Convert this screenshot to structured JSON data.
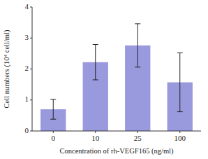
{
  "chart_data": {
    "type": "bar",
    "categories": [
      "0",
      "10",
      "25",
      "100"
    ],
    "values": [
      0.7,
      2.22,
      2.76,
      1.57
    ],
    "errors": [
      0.32,
      0.57,
      0.7,
      0.95
    ],
    "color": "#9999DD",
    "xlabel": "Concentration of rh-VEGF165 (ng/ml)",
    "ylabel": "Cell numbers (10⁴ cell/ml)",
    "ylim": [
      0,
      4
    ],
    "yticks": [
      0,
      1,
      2,
      3,
      4
    ],
    "grid": false
  }
}
